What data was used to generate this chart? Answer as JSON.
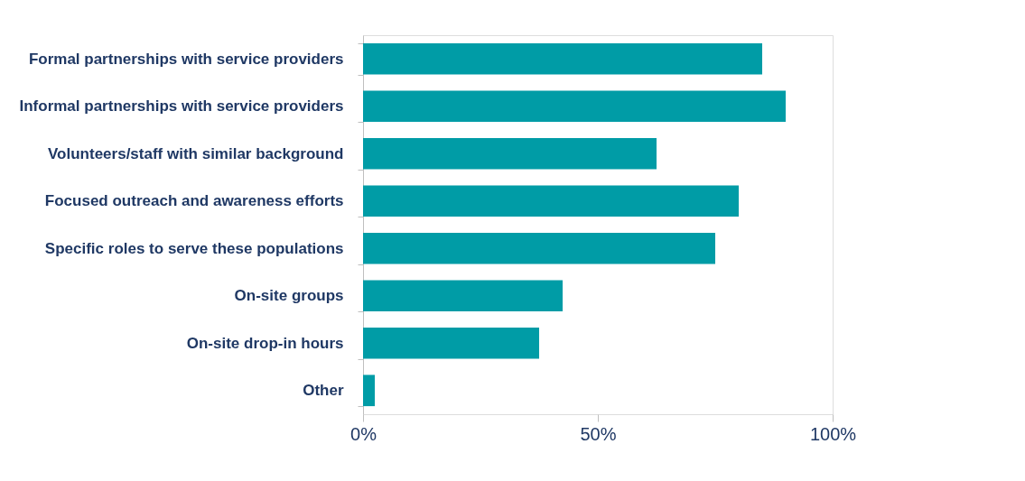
{
  "chart_data": {
    "type": "bar",
    "orientation": "horizontal",
    "categories": [
      "Formal partnerships with service providers",
      "Informal partnerships with service providers",
      "Volunteers/staff with similar background",
      "Focused outreach and awareness efforts",
      "Specific roles to serve these populations",
      "On-site groups",
      "On-site drop-in hours",
      "Other"
    ],
    "values": [
      85,
      90,
      62.5,
      80,
      75,
      42.5,
      37.5,
      2.5
    ],
    "color": "#009ca6",
    "xlim": [
      0,
      100
    ],
    "xticks": [
      {
        "value": 0,
        "label": "0%"
      },
      {
        "value": 50,
        "label": "50%"
      },
      {
        "value": 100,
        "label": "100%"
      }
    ],
    "grid": false
  }
}
